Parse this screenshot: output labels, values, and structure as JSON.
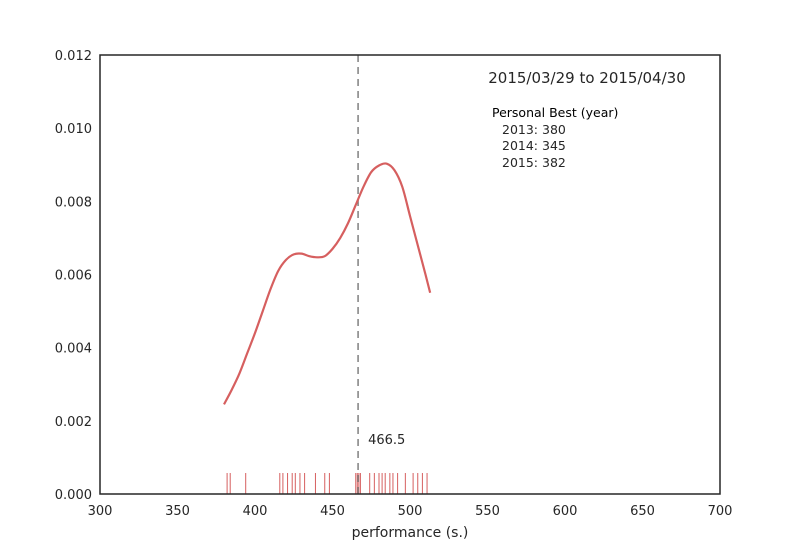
{
  "chart_data": {
    "type": "line",
    "title": "2015/03/29 to 2015/04/30",
    "xlabel": "performance (s.)",
    "ylabel": "",
    "xlim": [
      300,
      700
    ],
    "ylim": [
      0,
      0.012
    ],
    "x_ticks": [
      300,
      350,
      400,
      450,
      500,
      550,
      600,
      650,
      700
    ],
    "x_tick_labels": [
      "300",
      "350",
      "400",
      "450",
      "500",
      "550",
      "600",
      "650",
      "700"
    ],
    "y_ticks": [
      0,
      0.002,
      0.004,
      0.006,
      0.008,
      0.01,
      0.012
    ],
    "y_tick_labels": [
      "0.000",
      "0.002",
      "0.004",
      "0.006",
      "0.008",
      "0.010",
      "0.012"
    ],
    "grid": false,
    "series": [
      {
        "color": "#d65f5f",
        "x": [
          380,
          385,
          390,
          395,
          400,
          405,
          410,
          415,
          420,
          425,
          430,
          435,
          440,
          445,
          450,
          455,
          460,
          465,
          470,
          475,
          480,
          485,
          490,
          495,
          500,
          505,
          510,
          513
        ],
        "y": [
          0.00245,
          0.00285,
          0.0033,
          0.00385,
          0.0044,
          0.005,
          0.0056,
          0.0061,
          0.0064,
          0.00655,
          0.00657,
          0.0065,
          0.00647,
          0.0065,
          0.0067,
          0.007,
          0.0074,
          0.0079,
          0.0084,
          0.0088,
          0.00898,
          0.00903,
          0.00885,
          0.0084,
          0.0076,
          0.0068,
          0.006,
          0.0055
        ]
      }
    ],
    "rug": {
      "color": "#d65f5f",
      "values": [
        382,
        384,
        394,
        416,
        418,
        421,
        424,
        426,
        429,
        432,
        439,
        445,
        448,
        465,
        466,
        467,
        468,
        474,
        477,
        480,
        482,
        484,
        487,
        489,
        492,
        497,
        502,
        505,
        508,
        511
      ]
    },
    "vline": {
      "x": 466.5,
      "color": "#808080",
      "label": "466.5"
    },
    "annotation": {
      "header": "Personal Best (year)",
      "entries": [
        "2013: 380",
        "2014: 345",
        "2015: 382"
      ]
    }
  }
}
